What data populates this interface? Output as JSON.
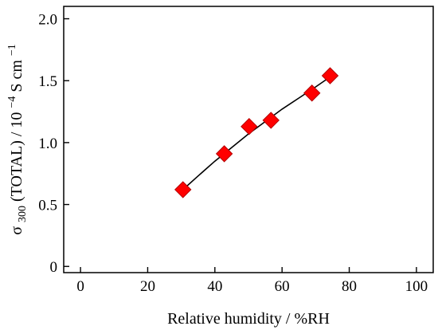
{
  "chart_data": {
    "type": "scatter",
    "xlabel": "Relative humidity  / %RH",
    "ylabel": {
      "sigma": "σ",
      "sub": "300",
      "rest": " (TOTAL) / 10",
      "exp1": "−4",
      "unit": " S cm",
      "exp2": "−1"
    },
    "xlim": [
      -5,
      105
    ],
    "ylim": [
      -0.05,
      2.1
    ],
    "xticks": [
      0,
      20,
      40,
      60,
      80,
      100
    ],
    "yticks": [
      0,
      0.5,
      1.0,
      1.5,
      2.0
    ],
    "xtick_labels": [
      "0",
      "20",
      "40",
      "60",
      "80",
      "100"
    ],
    "ytick_labels": [
      "0",
      "0.5",
      "1.0",
      "1.5",
      "2.0"
    ],
    "grid": false,
    "points": [
      {
        "x": 30.5,
        "y": 0.62
      },
      {
        "x": 42.8,
        "y": 0.91
      },
      {
        "x": 50.2,
        "y": 1.13
      },
      {
        "x": 56.7,
        "y": 1.18
      },
      {
        "x": 68.9,
        "y": 1.4
      },
      {
        "x": 74.3,
        "y": 1.54
      }
    ],
    "fit_curve": [
      {
        "x": 30.5,
        "y": 0.62
      },
      {
        "x": 35,
        "y": 0.73
      },
      {
        "x": 40,
        "y": 0.85
      },
      {
        "x": 45,
        "y": 0.96
      },
      {
        "x": 50,
        "y": 1.07
      },
      {
        "x": 55,
        "y": 1.17
      },
      {
        "x": 60,
        "y": 1.27
      },
      {
        "x": 65,
        "y": 1.36
      },
      {
        "x": 70,
        "y": 1.45
      },
      {
        "x": 74.3,
        "y": 1.53
      }
    ],
    "marker_color": "#ff0000",
    "marker_edge_color": "#b30000",
    "curve_color": "#000000"
  }
}
